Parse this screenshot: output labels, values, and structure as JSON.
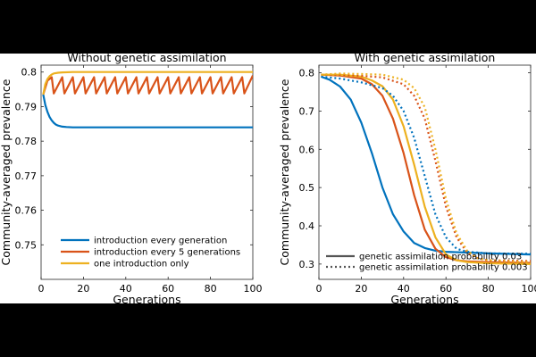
{
  "colors": {
    "blue": "#0072BD",
    "red": "#D95319",
    "yellow": "#EDB120",
    "grey": "#555555",
    "background": "#000000",
    "panel": "#ffffff"
  },
  "chart_data": [
    {
      "type": "line",
      "title": "Without genetic assimilation",
      "xlabel": "Generations",
      "ylabel": "Community-averaged prevalence",
      "xlim": [
        0,
        100
      ],
      "ylim": [
        0.74,
        0.802
      ],
      "xticks": [
        "0",
        "20",
        "40",
        "60",
        "80",
        "100"
      ],
      "yticks": [
        "0.75",
        "0.76",
        "0.77",
        "0.78",
        "0.79",
        "0.8"
      ],
      "grid": false,
      "legend_position": "bottom-center",
      "series": [
        {
          "name": "introduction every generation",
          "color": "blue",
          "style": "solid",
          "x": [
            1,
            2,
            3,
            4,
            5,
            6,
            7,
            8,
            10,
            12,
            15,
            20,
            30,
            50,
            100
          ],
          "y": [
            0.7935,
            0.7905,
            0.7885,
            0.787,
            0.786,
            0.7853,
            0.7848,
            0.7845,
            0.7842,
            0.7841,
            0.784,
            0.784,
            0.784,
            0.784,
            0.784
          ]
        },
        {
          "name": "introduction every 5 generations",
          "color": "red",
          "style": "solid",
          "x": [
            1,
            3,
            5,
            6,
            10,
            11,
            15,
            16,
            20,
            21,
            25,
            26,
            30,
            31,
            35,
            36,
            40,
            41,
            45,
            46,
            50,
            51,
            55,
            56,
            60,
            61,
            65,
            66,
            70,
            71,
            75,
            76,
            80,
            81,
            85,
            86,
            90,
            91,
            95,
            96,
            100
          ],
          "y": [
            0.7935,
            0.7975,
            0.7985,
            0.7938,
            0.7985,
            0.7938,
            0.7985,
            0.7938,
            0.7985,
            0.7938,
            0.7985,
            0.7938,
            0.7985,
            0.7938,
            0.7985,
            0.7938,
            0.7985,
            0.7938,
            0.7985,
            0.7938,
            0.7985,
            0.7938,
            0.7985,
            0.7938,
            0.7985,
            0.7938,
            0.7985,
            0.7938,
            0.7985,
            0.7938,
            0.7985,
            0.7938,
            0.7985,
            0.7938,
            0.7985,
            0.7938,
            0.7985,
            0.7938,
            0.7985,
            0.7938,
            0.799
          ]
        },
        {
          "name": "one introduction only",
          "color": "yellow",
          "style": "solid",
          "x": [
            1,
            2,
            3,
            4,
            5,
            6,
            8,
            10,
            15,
            20,
            100
          ],
          "y": [
            0.7935,
            0.7965,
            0.798,
            0.7988,
            0.7993,
            0.7996,
            0.7998,
            0.7999,
            0.8,
            0.8,
            0.8
          ]
        }
      ]
    },
    {
      "type": "line",
      "title": "With genetic assimilation",
      "xlabel": "Generations",
      "ylabel": "Community-averaged prevalence",
      "xlim": [
        0,
        100
      ],
      "ylim": [
        0.26,
        0.82
      ],
      "xticks": [
        "0",
        "20",
        "40",
        "60",
        "80",
        "100"
      ],
      "yticks": [
        "0.3",
        "0.4",
        "0.5",
        "0.6",
        "0.7",
        "0.8"
      ],
      "grid": false,
      "legend_position": "bottom-center",
      "legend": [
        {
          "label": "genetic assimilation probability 0.03",
          "style": "solid"
        },
        {
          "label": "genetic assimilation probability 0.003",
          "style": "dotted"
        }
      ],
      "series": [
        {
          "color": "blue",
          "style": "solid",
          "x": [
            1,
            5,
            10,
            15,
            20,
            25,
            30,
            35,
            40,
            45,
            50,
            55,
            60,
            70,
            80,
            100
          ],
          "y": [
            0.79,
            0.782,
            0.764,
            0.73,
            0.67,
            0.59,
            0.5,
            0.43,
            0.385,
            0.355,
            0.342,
            0.335,
            0.332,
            0.33,
            0.328,
            0.325
          ]
        },
        {
          "color": "red",
          "style": "solid",
          "x": [
            1,
            10,
            20,
            25,
            30,
            35,
            40,
            45,
            50,
            55,
            60,
            65,
            70,
            80,
            100
          ],
          "y": [
            0.795,
            0.793,
            0.785,
            0.77,
            0.74,
            0.68,
            0.59,
            0.48,
            0.39,
            0.34,
            0.318,
            0.31,
            0.307,
            0.305,
            0.303
          ]
        },
        {
          "color": "yellow",
          "style": "solid",
          "x": [
            1,
            10,
            20,
            25,
            30,
            35,
            40,
            45,
            50,
            55,
            60,
            65,
            70,
            80,
            100
          ],
          "y": [
            0.795,
            0.795,
            0.79,
            0.78,
            0.765,
            0.73,
            0.66,
            0.56,
            0.45,
            0.37,
            0.325,
            0.31,
            0.305,
            0.302,
            0.3
          ]
        },
        {
          "color": "blue",
          "style": "dotted",
          "x": [
            1,
            10,
            20,
            30,
            35,
            40,
            45,
            50,
            55,
            60,
            65,
            70,
            75,
            80,
            100
          ],
          "y": [
            0.79,
            0.785,
            0.775,
            0.76,
            0.74,
            0.7,
            0.63,
            0.53,
            0.43,
            0.37,
            0.34,
            0.332,
            0.33,
            0.328,
            0.327
          ]
        },
        {
          "color": "red",
          "style": "dotted",
          "x": [
            1,
            10,
            20,
            30,
            40,
            45,
            50,
            55,
            60,
            65,
            70,
            75,
            80,
            100
          ],
          "y": [
            0.795,
            0.795,
            0.792,
            0.788,
            0.77,
            0.74,
            0.68,
            0.57,
            0.45,
            0.37,
            0.33,
            0.315,
            0.31,
            0.308
          ]
        },
        {
          "color": "yellow",
          "style": "dotted",
          "x": [
            1,
            10,
            20,
            30,
            40,
            45,
            50,
            55,
            60,
            65,
            70,
            75,
            80,
            100
          ],
          "y": [
            0.795,
            0.798,
            0.797,
            0.795,
            0.782,
            0.76,
            0.71,
            0.6,
            0.47,
            0.38,
            0.335,
            0.315,
            0.31,
            0.305
          ]
        }
      ]
    }
  ]
}
